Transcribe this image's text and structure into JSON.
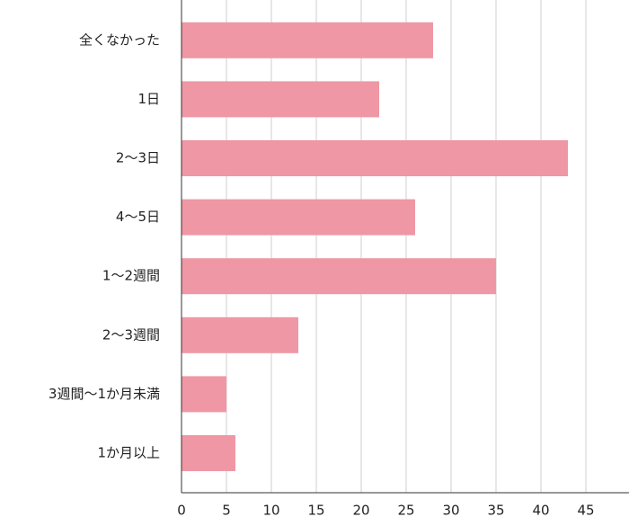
{
  "chart_data": {
    "type": "bar",
    "orientation": "horizontal",
    "categories": [
      "全くなかった",
      "1日",
      "2～3日",
      "4～5日",
      "1～2週間",
      "2～3週間",
      "3週間～1か月未満",
      "1か月以上"
    ],
    "values": [
      28,
      22,
      43,
      26,
      35,
      13,
      5,
      6
    ],
    "color": "#ef97a5",
    "xlim": [
      0,
      49.8
    ],
    "xticks": [
      0,
      5,
      10,
      15,
      20,
      25,
      30,
      35,
      40,
      45
    ],
    "grid": true
  }
}
